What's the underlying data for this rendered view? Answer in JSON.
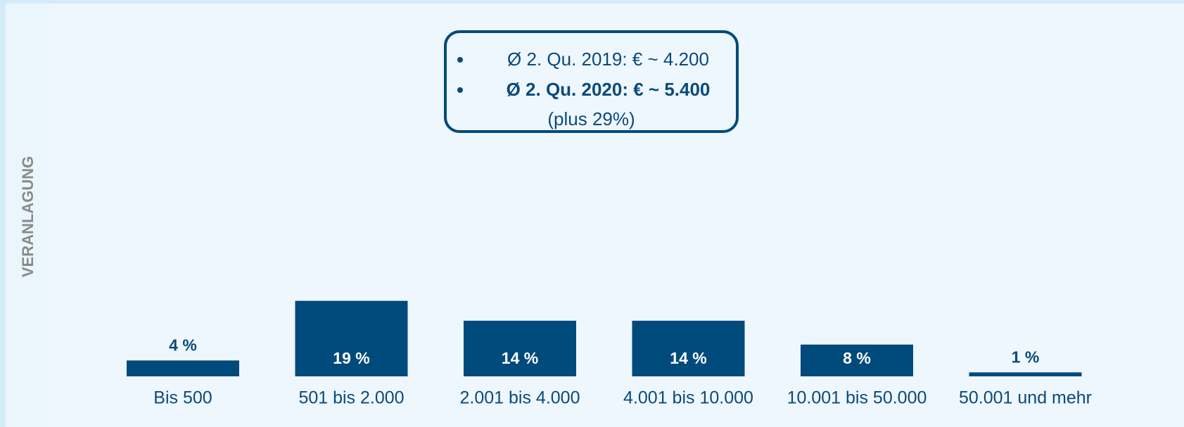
{
  "chart_data": {
    "type": "bar",
    "side_label": "VERANLAGUNG",
    "annotation": {
      "lines": [
        "Ø 2. Qu. 2019: € ~ 4.200",
        "Ø 2. Qu. 2020: € ~ 5.400"
      ],
      "note": "(plus 29%)"
    },
    "categories": [
      "Bis 500",
      "501 bis 2.000",
      "2.001 bis 4.000",
      "4.001 bis 10.000",
      "10.001 bis 50.000",
      "50.001 und mehr"
    ],
    "values": [
      4,
      19,
      14,
      14,
      8,
      1
    ],
    "value_labels": [
      "4 %",
      "19 %",
      "14 %",
      "14 %",
      "8 %",
      "1 %"
    ],
    "color": "#004a7c"
  }
}
